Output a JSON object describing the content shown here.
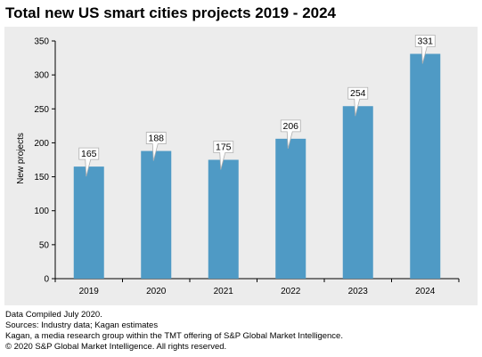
{
  "chart_data": {
    "type": "bar",
    "title": "Total new US smart cities projects 2019 - 2024",
    "ylabel": "New projects",
    "xlabel": "",
    "categories": [
      "2019",
      "2020",
      "2021",
      "2022",
      "2023",
      "2024"
    ],
    "values": [
      165,
      188,
      175,
      206,
      254,
      331
    ],
    "ylim": [
      0,
      350
    ],
    "yticks": [
      0,
      50,
      100,
      150,
      200,
      250,
      300,
      350
    ],
    "grid": false,
    "bar_color": "#4f9ac5",
    "background_color": "#ececec"
  },
  "footer": {
    "line1": "Data Compiled July 2020.",
    "line2": "Sources: Industry data; Kagan estimates",
    "line3": "Kagan, a media research group within the TMT offering of S&P Global Market Intelligence.",
    "line4": "© 2020 S&P Global Market Intelligence. All rights reserved."
  }
}
